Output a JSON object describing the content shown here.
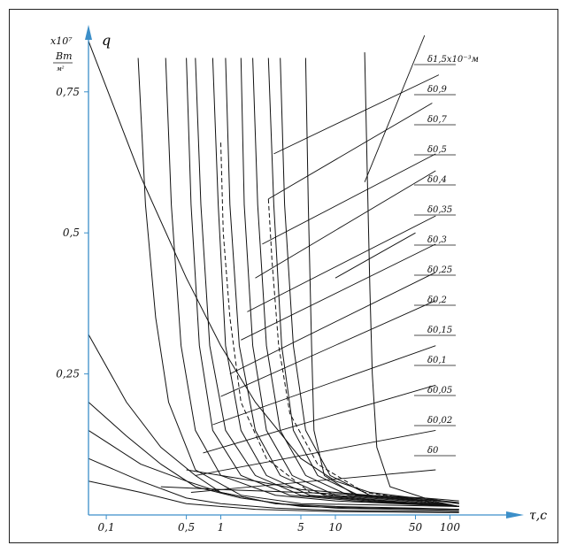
{
  "chart_data": {
    "type": "line",
    "title": "",
    "xlabel": "τ,с",
    "ylabel": {
      "multiplier": "x10⁷",
      "unit_numerator": "Вт",
      "unit_denominator": "м²",
      "symbol": "q"
    },
    "x_scale": "log",
    "xlim": [
      0.07,
      250
    ],
    "ylim": [
      0,
      0.85
    ],
    "x_ticks": [
      {
        "label": "0,1",
        "value": 0.1
      },
      {
        "label": "0,5",
        "value": 0.5
      },
      {
        "label": "1",
        "value": 1
      },
      {
        "label": "5",
        "value": 5
      },
      {
        "label": "10",
        "value": 10
      },
      {
        "label": "50",
        "value": 50
      },
      {
        "label": "100",
        "value": 100
      }
    ],
    "y_ticks": [
      {
        "label": "0,25",
        "value": 0.25
      },
      {
        "label": "0,5",
        "value": 0.5
      },
      {
        "label": "0,75",
        "value": 0.75
      }
    ],
    "curve_labels": [
      "δ1,5х10⁻³м",
      "δ0,9",
      "δ0,7",
      "δ0,5",
      "δ0,4",
      "δ0,35",
      "δ0,3",
      "δ0,25",
      "δ0,2",
      "δ0,15",
      "δ0,1",
      "δ0,05",
      "δ0,02",
      "δ0"
    ],
    "series": [
      {
        "points": [
          [
            0.07,
            0.84
          ],
          [
            0.2,
            0.6
          ],
          [
            0.5,
            0.42
          ],
          [
            1,
            0.3
          ],
          [
            2,
            0.2
          ],
          [
            5,
            0.1
          ],
          [
            10,
            0.06
          ],
          [
            20,
            0.04
          ],
          [
            50,
            0.03
          ],
          [
            120,
            0.02
          ]
        ]
      },
      {
        "points": [
          [
            0.07,
            0.32
          ],
          [
            0.15,
            0.2
          ],
          [
            0.3,
            0.12
          ],
          [
            0.6,
            0.07
          ],
          [
            1,
            0.04
          ],
          [
            3,
            0.02
          ],
          [
            10,
            0.015
          ],
          [
            50,
            0.012
          ],
          [
            120,
            0.01
          ]
        ]
      },
      {
        "points": [
          [
            0.07,
            0.2
          ],
          [
            0.15,
            0.14
          ],
          [
            0.3,
            0.09
          ],
          [
            0.6,
            0.05
          ],
          [
            1.5,
            0.03
          ],
          [
            5,
            0.015
          ],
          [
            20,
            0.012
          ],
          [
            120,
            0.01
          ]
        ]
      },
      {
        "points": [
          [
            0.07,
            0.15
          ],
          [
            0.2,
            0.09
          ],
          [
            0.5,
            0.06
          ],
          [
            1,
            0.04
          ],
          [
            3,
            0.02
          ],
          [
            10,
            0.012
          ],
          [
            120,
            0.008
          ]
        ]
      },
      {
        "points": [
          [
            0.07,
            0.1
          ],
          [
            0.2,
            0.06
          ],
          [
            0.5,
            0.03
          ],
          [
            1,
            0.02
          ],
          [
            3,
            0.012
          ],
          [
            10,
            0.008
          ],
          [
            120,
            0.006
          ]
        ]
      },
      {
        "points": [
          [
            0.07,
            0.06
          ],
          [
            0.2,
            0.04
          ],
          [
            0.5,
            0.02
          ],
          [
            2,
            0.01
          ],
          [
            10,
            0.006
          ],
          [
            120,
            0.004
          ]
        ]
      },
      {
        "points": [
          [
            0.3,
            0.05
          ],
          [
            1,
            0.045
          ],
          [
            5,
            0.04
          ],
          [
            20,
            0.035
          ],
          [
            60,
            0.03
          ],
          [
            120,
            0.025
          ]
        ]
      },
      {
        "points": [
          [
            0.5,
            0.08
          ],
          [
            2,
            0.06
          ],
          [
            5,
            0.045
          ],
          [
            20,
            0.035
          ],
          [
            60,
            0.028
          ],
          [
            120,
            0.022
          ]
        ]
      },
      {
        "points": [
          [
            0.19,
            0.81
          ],
          [
            0.22,
            0.55
          ],
          [
            0.27,
            0.35
          ],
          [
            0.35,
            0.2
          ],
          [
            0.6,
            0.08
          ],
          [
            1.5,
            0.035
          ],
          [
            5,
            0.02
          ],
          [
            120,
            0.015
          ]
        ]
      },
      {
        "points": [
          [
            0.33,
            0.81
          ],
          [
            0.37,
            0.55
          ],
          [
            0.45,
            0.3
          ],
          [
            0.6,
            0.15
          ],
          [
            1,
            0.07
          ],
          [
            3,
            0.035
          ],
          [
            10,
            0.025
          ],
          [
            120,
            0.015
          ]
        ]
      },
      {
        "points": [
          [
            0.5,
            0.81
          ],
          [
            0.55,
            0.55
          ],
          [
            0.65,
            0.3
          ],
          [
            0.85,
            0.15
          ],
          [
            1.5,
            0.07
          ],
          [
            4,
            0.035
          ],
          [
            15,
            0.025
          ],
          [
            120,
            0.015
          ]
        ]
      },
      {
        "points": [
          [
            0.6,
            0.81
          ],
          [
            0.67,
            0.55
          ],
          [
            0.8,
            0.3
          ],
          [
            1.1,
            0.15
          ],
          [
            2,
            0.07
          ],
          [
            5,
            0.035
          ],
          [
            20,
            0.025
          ],
          [
            120,
            0.015
          ]
        ]
      },
      {
        "points": [
          [
            0.85,
            0.81
          ],
          [
            0.95,
            0.55
          ],
          [
            1.1,
            0.3
          ],
          [
            1.5,
            0.15
          ],
          [
            2.5,
            0.07
          ],
          [
            6,
            0.035
          ],
          [
            25,
            0.025
          ],
          [
            120,
            0.015
          ]
        ]
      },
      {
        "points": [
          [
            1.1,
            0.81
          ],
          [
            1.2,
            0.55
          ],
          [
            1.45,
            0.3
          ],
          [
            2,
            0.15
          ],
          [
            3.3,
            0.07
          ],
          [
            8,
            0.035
          ],
          [
            30,
            0.025
          ],
          [
            120,
            0.015
          ]
        ]
      },
      {
        "points": [
          [
            1.5,
            0.81
          ],
          [
            1.6,
            0.55
          ],
          [
            1.9,
            0.3
          ],
          [
            2.5,
            0.15
          ],
          [
            4.2,
            0.07
          ],
          [
            10,
            0.035
          ],
          [
            40,
            0.025
          ],
          [
            120,
            0.015
          ]
        ]
      },
      {
        "points": [
          [
            1.9,
            0.81
          ],
          [
            2.1,
            0.55
          ],
          [
            2.5,
            0.3
          ],
          [
            3.3,
            0.15
          ],
          [
            5.5,
            0.07
          ],
          [
            13,
            0.035
          ],
          [
            50,
            0.025
          ],
          [
            120,
            0.015
          ]
        ]
      },
      {
        "points": [
          [
            2.6,
            0.81
          ],
          [
            2.9,
            0.55
          ],
          [
            3.4,
            0.3
          ],
          [
            4.3,
            0.15
          ],
          [
            7,
            0.07
          ],
          [
            16,
            0.035
          ],
          [
            60,
            0.025
          ],
          [
            120,
            0.015
          ]
        ]
      },
      {
        "points": [
          [
            3.3,
            0.81
          ],
          [
            3.6,
            0.55
          ],
          [
            4.3,
            0.3
          ],
          [
            5.5,
            0.15
          ],
          [
            9,
            0.07
          ],
          [
            20,
            0.035
          ],
          [
            70,
            0.025
          ],
          [
            120,
            0.015
          ]
        ]
      },
      {
        "points": [
          [
            5.5,
            0.81
          ],
          [
            5.8,
            0.55
          ],
          [
            6.2,
            0.3
          ],
          [
            6.5,
            0.15
          ],
          [
            8,
            0.07
          ],
          [
            15,
            0.035
          ],
          [
            60,
            0.025
          ],
          [
            120,
            0.015
          ]
        ]
      },
      {
        "points": [
          [
            18,
            0.82
          ],
          [
            19,
            0.6
          ],
          [
            20,
            0.4
          ],
          [
            21,
            0.25
          ],
          [
            23,
            0.12
          ],
          [
            30,
            0.05
          ],
          [
            60,
            0.03
          ],
          [
            120,
            0.02
          ]
        ]
      },
      {
        "dashed": true,
        "points": [
          [
            1.0,
            0.66
          ],
          [
            1.05,
            0.5
          ],
          [
            1.2,
            0.35
          ],
          [
            1.5,
            0.2
          ],
          [
            2.5,
            0.1
          ],
          [
            6,
            0.04
          ],
          [
            25,
            0.025
          ],
          [
            120,
            0.015
          ]
        ]
      },
      {
        "dashed": true,
        "points": [
          [
            2.6,
            0.56
          ],
          [
            2.8,
            0.45
          ],
          [
            3.2,
            0.3
          ],
          [
            4,
            0.18
          ],
          [
            7,
            0.09
          ],
          [
            18,
            0.04
          ],
          [
            60,
            0.025
          ],
          [
            120,
            0.015
          ]
        ]
      }
    ],
    "leaders": [
      {
        "from": [
          10,
          0.42
        ],
        "to": [
          50,
          0.5
        ]
      },
      {
        "from": [
          18,
          0.59
        ],
        "to": [
          60,
          0.85
        ]
      },
      {
        "from": [
          2.9,
          0.64
        ],
        "to": [
          80,
          0.78
        ]
      },
      {
        "from": [
          2.6,
          0.56
        ],
        "to": [
          70,
          0.73
        ]
      },
      {
        "from": [
          2.3,
          0.48
        ],
        "to": [
          75,
          0.64
        ]
      },
      {
        "from": [
          2.0,
          0.42
        ],
        "to": [
          75,
          0.61
        ]
      },
      {
        "from": [
          1.7,
          0.36
        ],
        "to": [
          75,
          0.53
        ]
      },
      {
        "from": [
          1.5,
          0.31
        ],
        "to": [
          75,
          0.48
        ]
      },
      {
        "from": [
          1.2,
          0.25
        ],
        "to": [
          75,
          0.43
        ]
      },
      {
        "from": [
          1.0,
          0.21
        ],
        "to": [
          75,
          0.38
        ]
      },
      {
        "from": [
          0.85,
          0.16
        ],
        "to": [
          75,
          0.3
        ]
      },
      {
        "from": [
          0.7,
          0.11
        ],
        "to": [
          75,
          0.23
        ]
      },
      {
        "from": [
          0.6,
          0.07
        ],
        "to": [
          75,
          0.15
        ]
      },
      {
        "from": [
          0.55,
          0.04
        ],
        "to": [
          75,
          0.08
        ]
      }
    ]
  }
}
